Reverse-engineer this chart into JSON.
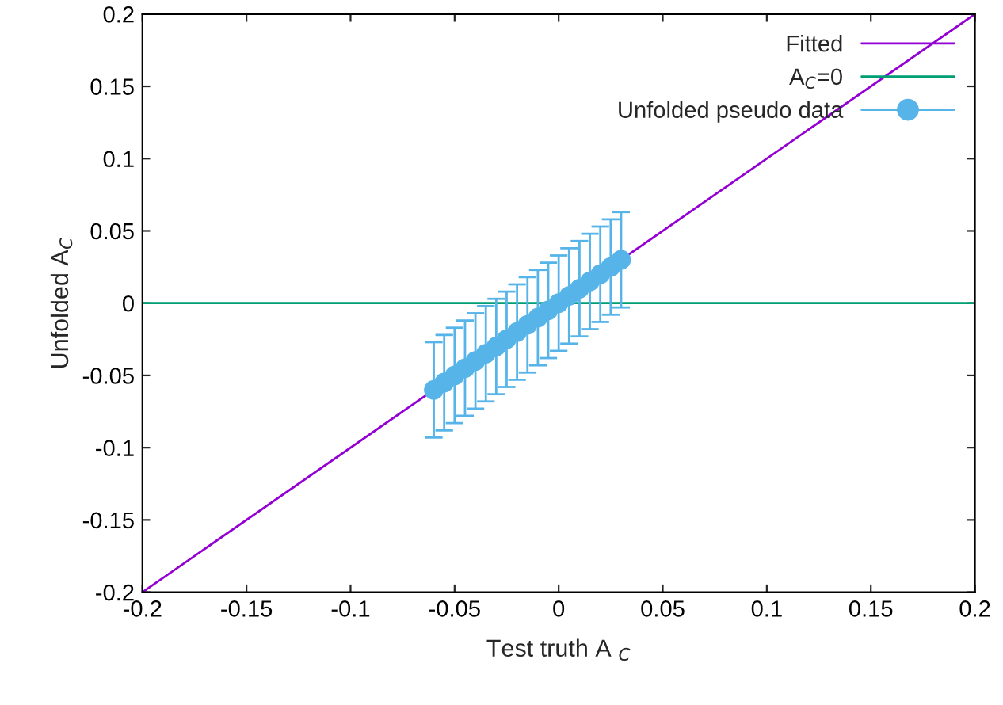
{
  "chart_data": {
    "type": "line",
    "xlabel": "Test truth A $_{C}$",
    "ylabel": "Unfolded A$_{C}$",
    "xlim": [
      -0.2,
      0.2
    ],
    "ylim": [
      -0.2,
      0.2
    ],
    "xticks": [
      -0.2,
      -0.15,
      -0.1,
      -0.05,
      0,
      0.05,
      0.1,
      0.15,
      0.2
    ],
    "yticks": [
      -0.2,
      -0.15,
      -0.1,
      -0.05,
      0,
      0.05,
      0.1,
      0.15,
      0.2
    ],
    "grid": false,
    "legend": "top right",
    "series": [
      {
        "name": "Fitted",
        "color": "#9400d3",
        "x": [
          -0.2,
          0.2
        ],
        "values": [
          -0.2,
          0.2
        ]
      },
      {
        "name": "A$_{C}$=0",
        "color": "#009e73",
        "x": [
          -0.2,
          0.2
        ],
        "values": [
          0,
          0
        ]
      },
      {
        "name": "Unfolded pseudo data",
        "type": "scatter",
        "marker": "circle",
        "color": "#56b4e9",
        "x": [
          -0.06,
          -0.055,
          -0.05,
          -0.045,
          -0.04,
          -0.035,
          -0.03,
          -0.025,
          -0.02,
          -0.015,
          -0.01,
          -0.005,
          0,
          0.005,
          0.01,
          0.015,
          0.02,
          0.025,
          0.03
        ],
        "values": [
          -0.06,
          -0.055,
          -0.05,
          -0.045,
          -0.04,
          -0.035,
          -0.03,
          -0.025,
          -0.02,
          -0.015,
          -0.01,
          -0.005,
          0,
          0.005,
          0.01,
          0.015,
          0.02,
          0.025,
          0.03
        ],
        "errors": [
          0.033,
          0.033,
          0.033,
          0.033,
          0.033,
          0.033,
          0.033,
          0.033,
          0.033,
          0.033,
          0.033,
          0.033,
          0.033,
          0.033,
          0.033,
          0.033,
          0.033,
          0.033,
          0.033
        ]
      }
    ]
  }
}
